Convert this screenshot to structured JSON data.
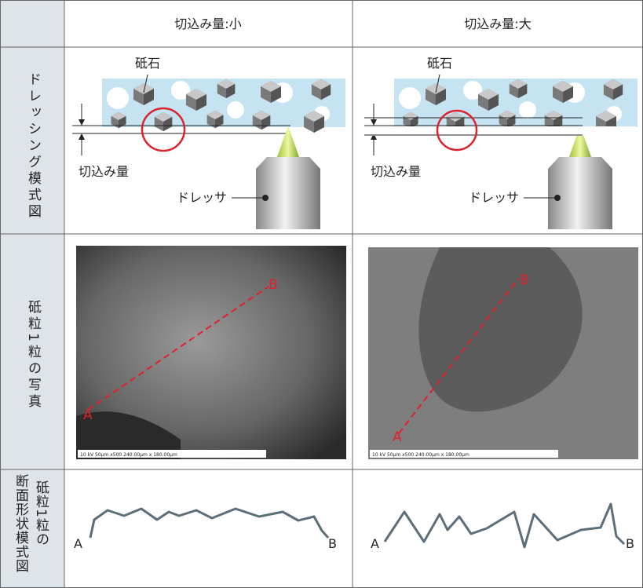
{
  "header": {
    "cells": [
      "切込み量:小",
      "切込み量:大"
    ]
  },
  "rows": [
    {
      "label": "ドレッシング模式図",
      "cells": [
        {
          "grindstone": "砥石",
          "depth": "切込み量",
          "dresser": "ドレッサ"
        },
        {
          "grindstone": "砥石",
          "depth": "切込み量",
          "dresser": "ドレッサ"
        }
      ]
    },
    {
      "label": "砥粒1粒の写真",
      "cells": [
        {
          "a": "A",
          "b": "B",
          "scale": "10 kV  50μm  x500  240.00μm x 180.00μm"
        },
        {
          "a": "A",
          "b": "B",
          "scale": "10 kV  50μm  x500  240.00μm x 180.00μm"
        }
      ]
    },
    {
      "label_lines": [
        "砥粒1粒の",
        "断面形状模式図"
      ],
      "cells": [
        {
          "a": "A",
          "b": "B"
        },
        {
          "a": "A",
          "b": "B"
        }
      ]
    }
  ]
}
